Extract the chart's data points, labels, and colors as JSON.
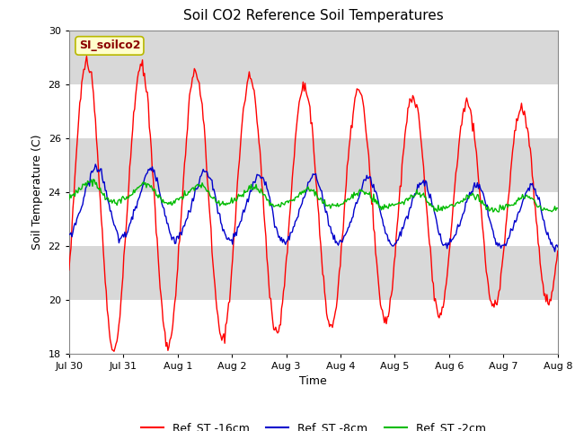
{
  "title": "Soil CO2 Reference Soil Temperatures",
  "xlabel": "Time",
  "ylabel": "Soil Temperature (C)",
  "ylim": [
    18,
    30
  ],
  "yticks": [
    18,
    20,
    22,
    24,
    26,
    28,
    30
  ],
  "fig_bg_color": "#ffffff",
  "plot_bg_color": "#d8d8d8",
  "grid_color": "#f0f0f0",
  "annotation_text": "SI_soilco2",
  "annotation_color": "#8b0000",
  "annotation_bg": "#ffffcc",
  "annotation_border": "#b8b800",
  "line_colors": {
    "red": "#ff0000",
    "blue": "#0000cc",
    "green": "#00bb00"
  },
  "legend_labels": [
    "Ref_ST -16cm",
    "Ref_ST -8cm",
    "Ref_ST -2cm"
  ],
  "xtick_labels": [
    "Jul 30",
    "Jul 31",
    "Aug 1",
    "Aug 2",
    "Aug 3",
    "Aug 4",
    "Aug 5",
    "Aug 6",
    "Aug 7",
    "Aug 8"
  ],
  "n_points": 500,
  "red_seed": 10,
  "blue_seed": 20,
  "green_seed": 30
}
